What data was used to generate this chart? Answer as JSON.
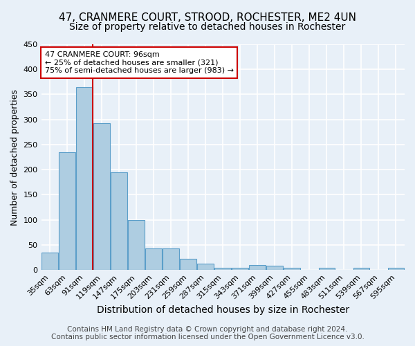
{
  "title": "47, CRANMERE COURT, STROOD, ROCHESTER, ME2 4UN",
  "subtitle": "Size of property relative to detached houses in Rochester",
  "xlabel": "Distribution of detached houses by size in Rochester",
  "ylabel": "Number of detached properties",
  "categories": [
    "35sqm",
    "63sqm",
    "91sqm",
    "119sqm",
    "147sqm",
    "175sqm",
    "203sqm",
    "231sqm",
    "259sqm",
    "287sqm",
    "315sqm",
    "343sqm",
    "371sqm",
    "399sqm",
    "427sqm",
    "455sqm",
    "483sqm",
    "511sqm",
    "539sqm",
    "567sqm",
    "595sqm"
  ],
  "values": [
    35,
    235,
    365,
    293,
    195,
    100,
    43,
    43,
    23,
    13,
    5,
    4,
    10,
    8,
    5,
    0,
    4,
    0,
    4,
    0,
    4
  ],
  "bar_color": "#aecde1",
  "bar_edge_color": "#5b9ec9",
  "bg_color": "#e8f0f8",
  "grid_color": "#ffffff",
  "vline_index": 2,
  "vline_color": "#cc0000",
  "annotation_text": "47 CRANMERE COURT: 96sqm\n← 25% of detached houses are smaller (321)\n75% of semi-detached houses are larger (983) →",
  "annotation_box_color": "#ffffff",
  "annotation_box_edge_color": "#cc0000",
  "footer_line1": "Contains HM Land Registry data © Crown copyright and database right 2024.",
  "footer_line2": "Contains public sector information licensed under the Open Government Licence v3.0.",
  "ylim": [
    0,
    450
  ],
  "title_fontsize": 11,
  "subtitle_fontsize": 10,
  "xlabel_fontsize": 10,
  "ylabel_fontsize": 9,
  "tick_fontsize": 8,
  "footer_fontsize": 7.5
}
